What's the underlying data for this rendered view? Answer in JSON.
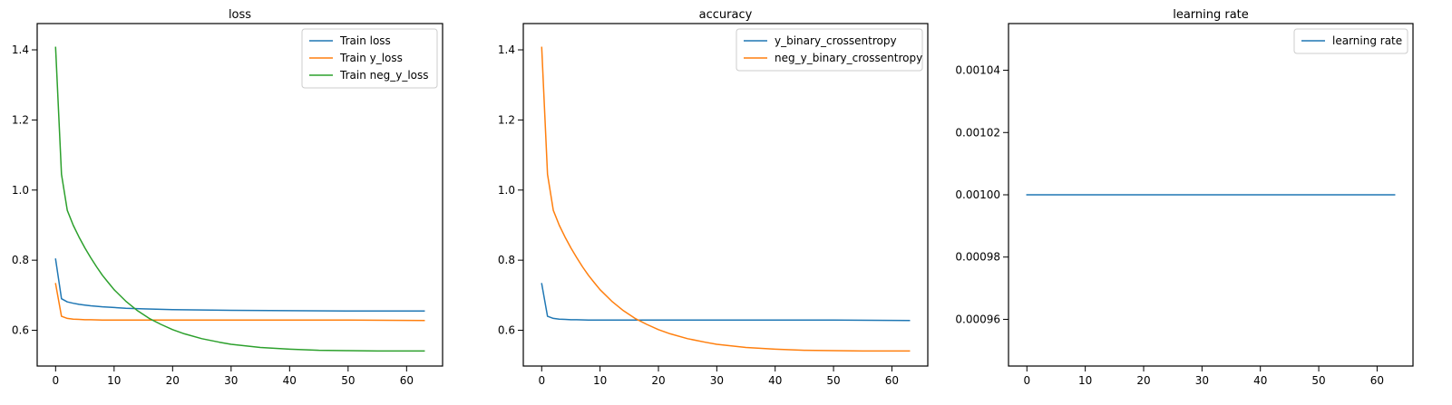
{
  "chart_data": [
    {
      "type": "line",
      "title": "loss",
      "xlabel": "",
      "ylabel": "",
      "xlim": [
        -3.15,
        66.15
      ],
      "ylim": [
        0.498,
        1.475
      ],
      "xticks": [
        0,
        10,
        20,
        30,
        40,
        50,
        60
      ],
      "yticks": [
        0.6,
        0.8,
        1.0,
        1.2,
        1.4
      ],
      "ytick_labels": [
        "0.6",
        "0.8",
        "1.0",
        "1.2",
        "1.4"
      ],
      "grid": false,
      "legend_position": "top-right",
      "series": [
        {
          "name": "Train loss",
          "color": "#1f77b4",
          "x": [
            0,
            1,
            2,
            3,
            4,
            5,
            6,
            8,
            10,
            12,
            15,
            20,
            25,
            30,
            40,
            50,
            63
          ],
          "values": [
            0.803,
            0.69,
            0.681,
            0.677,
            0.674,
            0.672,
            0.67,
            0.667,
            0.665,
            0.663,
            0.661,
            0.659,
            0.658,
            0.657,
            0.656,
            0.655,
            0.655
          ]
        },
        {
          "name": "Train y_loss",
          "color": "#ff7f0e",
          "x": [
            0,
            1,
            2,
            3,
            4,
            5,
            6,
            8,
            10,
            15,
            20,
            30,
            40,
            50,
            63
          ],
          "values": [
            0.733,
            0.64,
            0.634,
            0.632,
            0.631,
            0.63,
            0.63,
            0.629,
            0.629,
            0.629,
            0.629,
            0.629,
            0.629,
            0.629,
            0.628
          ]
        },
        {
          "name": "Train neg_y_loss",
          "color": "#2ca02c",
          "x": [
            0,
            1,
            2,
            3,
            4,
            5,
            6,
            7,
            8,
            9,
            10,
            12,
            14,
            16,
            18,
            20,
            22,
            25,
            28,
            30,
            35,
            40,
            45,
            50,
            55,
            60,
            63
          ],
          "values": [
            1.407,
            1.045,
            0.942,
            0.9,
            0.866,
            0.835,
            0.807,
            0.781,
            0.757,
            0.736,
            0.716,
            0.683,
            0.656,
            0.634,
            0.617,
            0.602,
            0.59,
            0.576,
            0.566,
            0.56,
            0.551,
            0.546,
            0.543,
            0.542,
            0.541,
            0.541,
            0.541
          ]
        }
      ]
    },
    {
      "type": "line",
      "title": "accuracy",
      "xlabel": "",
      "ylabel": "",
      "xlim": [
        -3.15,
        66.15
      ],
      "ylim": [
        0.498,
        1.475
      ],
      "xticks": [
        0,
        10,
        20,
        30,
        40,
        50,
        60
      ],
      "yticks": [
        0.6,
        0.8,
        1.0,
        1.2,
        1.4
      ],
      "ytick_labels": [
        "0.6",
        "0.8",
        "1.0",
        "1.2",
        "1.4"
      ],
      "grid": false,
      "legend_position": "top-right",
      "series": [
        {
          "name": "y_binary_crossentropy",
          "color": "#1f77b4",
          "x": [
            0,
            1,
            2,
            3,
            4,
            5,
            6,
            8,
            10,
            15,
            20,
            30,
            40,
            50,
            63
          ],
          "values": [
            0.733,
            0.64,
            0.634,
            0.632,
            0.631,
            0.63,
            0.63,
            0.629,
            0.629,
            0.629,
            0.629,
            0.629,
            0.629,
            0.629,
            0.628
          ]
        },
        {
          "name": "neg_y_binary_crossentropy",
          "color": "#ff7f0e",
          "x": [
            0,
            1,
            2,
            3,
            4,
            5,
            6,
            7,
            8,
            9,
            10,
            12,
            14,
            16,
            18,
            20,
            22,
            25,
            28,
            30,
            35,
            40,
            45,
            50,
            55,
            60,
            63
          ],
          "values": [
            1.407,
            1.045,
            0.942,
            0.9,
            0.866,
            0.835,
            0.807,
            0.781,
            0.757,
            0.736,
            0.716,
            0.683,
            0.656,
            0.634,
            0.617,
            0.602,
            0.59,
            0.576,
            0.566,
            0.56,
            0.551,
            0.546,
            0.543,
            0.542,
            0.541,
            0.541,
            0.541
          ]
        }
      ]
    },
    {
      "type": "line",
      "title": "learning rate",
      "xlabel": "",
      "ylabel": "",
      "xlim": [
        -3.15,
        66.15
      ],
      "ylim": [
        0.000945,
        0.001055
      ],
      "xticks": [
        0,
        10,
        20,
        30,
        40,
        50,
        60
      ],
      "yticks": [
        0.00096,
        0.00098,
        0.001,
        0.00102,
        0.00104
      ],
      "ytick_labels": [
        "0.00096",
        "0.00098",
        "0.00100",
        "0.00102",
        "0.00104"
      ],
      "grid": false,
      "legend_position": "top-right",
      "series": [
        {
          "name": "learning rate",
          "color": "#1f77b4",
          "x": [
            0,
            63
          ],
          "values": [
            0.001,
            0.001
          ]
        }
      ]
    }
  ]
}
